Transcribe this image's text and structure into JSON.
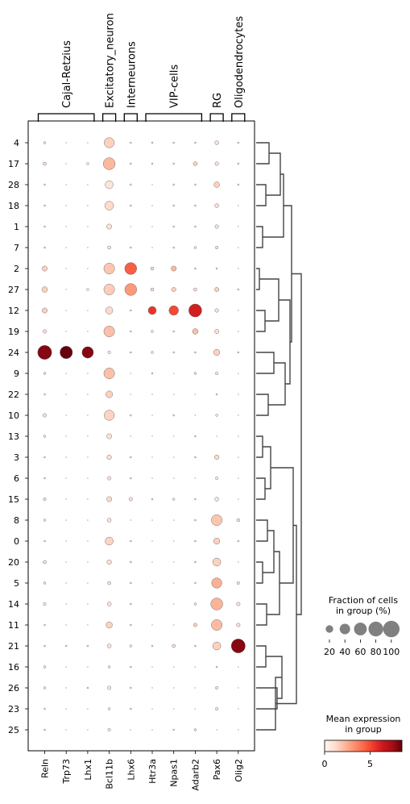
{
  "chart_data": {
    "type": "dotplot",
    "genes": [
      "Reln",
      "Trp73",
      "Lhx1",
      "Bcl11b",
      "Lhx6",
      "Htr3a",
      "Npas1",
      "Adarb2",
      "Pax6",
      "Olig2"
    ],
    "groups": [
      "4",
      "17",
      "28",
      "18",
      "1",
      "7",
      "2",
      "27",
      "12",
      "19",
      "24",
      "9",
      "22",
      "10",
      "13",
      "3",
      "6",
      "15",
      "8",
      "0",
      "20",
      "5",
      "14",
      "11",
      "21",
      "16",
      "26",
      "23",
      "25"
    ],
    "gene_groups": [
      {
        "label": "Cajal-Retzius",
        "start": 0,
        "end": 2
      },
      {
        "label": "Excitatory_neuron",
        "start": 3,
        "end": 3
      },
      {
        "label": "Interneurons",
        "start": 4,
        "end": 4
      },
      {
        "label": "VIP-cells",
        "start": 5,
        "end": 7
      },
      {
        "label": "RG",
        "start": 8,
        "end": 8
      },
      {
        "label": "Oligodendrocytes",
        "start": 9,
        "end": 9
      }
    ],
    "fraction": [
      [
        2,
        0,
        0,
        40,
        1,
        1,
        1,
        1,
        6,
        1
      ],
      [
        4,
        0,
        2,
        55,
        1,
        1,
        1,
        6,
        5,
        1
      ],
      [
        1,
        0,
        0,
        25,
        1,
        0,
        1,
        1,
        12,
        1
      ],
      [
        1,
        0,
        0,
        30,
        1,
        0,
        1,
        1,
        6,
        0
      ],
      [
        1,
        0,
        0,
        10,
        0,
        0,
        1,
        1,
        5,
        0
      ],
      [
        1,
        0,
        0,
        4,
        1,
        0,
        1,
        2,
        3,
        0
      ],
      [
        10,
        0,
        0,
        45,
        55,
        4,
        10,
        1,
        1,
        0
      ],
      [
        12,
        0,
        2,
        45,
        55,
        4,
        7,
        4,
        7,
        1
      ],
      [
        10,
        0,
        0,
        20,
        1,
        25,
        35,
        65,
        5,
        0
      ],
      [
        5,
        0,
        0,
        45,
        1,
        2,
        1,
        12,
        7,
        0
      ],
      [
        75,
        60,
        50,
        3,
        1,
        2,
        1,
        1,
        15,
        1
      ],
      [
        2,
        0,
        0,
        45,
        0,
        1,
        0,
        2,
        3,
        0
      ],
      [
        1,
        0,
        0,
        18,
        0,
        0,
        0,
        0,
        1,
        0
      ],
      [
        5,
        0,
        0,
        40,
        1,
        0,
        1,
        0,
        2,
        0
      ],
      [
        2,
        0,
        0,
        10,
        0,
        0,
        0,
        1,
        0,
        0
      ],
      [
        1,
        0,
        0,
        8,
        1,
        0,
        0,
        1,
        8,
        0
      ],
      [
        1,
        0,
        0,
        5,
        1,
        0,
        0,
        0,
        3,
        0
      ],
      [
        3,
        0,
        0,
        10,
        5,
        1,
        2,
        1,
        6,
        0
      ],
      [
        2,
        0,
        0,
        6,
        0,
        0,
        0,
        1,
        45,
        4
      ],
      [
        1,
        0,
        0,
        25,
        1,
        0,
        0,
        1,
        15,
        1
      ],
      [
        4,
        0,
        0,
        8,
        1,
        0,
        0,
        1,
        25,
        0
      ],
      [
        2,
        0,
        0,
        4,
        1,
        0,
        0,
        1,
        40,
        3
      ],
      [
        3,
        0,
        0,
        6,
        1,
        0,
        0,
        2,
        55,
        5
      ],
      [
        1,
        0,
        0,
        15,
        1,
        0,
        0,
        5,
        45,
        5
      ],
      [
        1,
        1,
        1,
        6,
        2,
        1,
        4,
        1,
        25,
        75
      ],
      [
        2,
        0,
        0,
        2,
        1,
        0,
        0,
        0,
        1,
        0
      ],
      [
        2,
        0,
        1,
        5,
        1,
        0,
        0,
        0,
        3,
        0
      ],
      [
        1,
        0,
        0,
        2,
        1,
        0,
        0,
        0,
        3,
        0
      ],
      [
        1,
        0,
        0,
        3,
        0,
        0,
        1,
        2,
        0,
        0
      ]
    ],
    "expression": [
      [
        0.5,
        0,
        0,
        1.5,
        0.5,
        0.5,
        0.5,
        0.5,
        1,
        0.5
      ],
      [
        1,
        0,
        0,
        2.2,
        0.5,
        0.5,
        0.5,
        1.5,
        1,
        0.5
      ],
      [
        0.5,
        0,
        0,
        0.8,
        0.5,
        0,
        0.5,
        0.5,
        1.5,
        0.5
      ],
      [
        0.5,
        0,
        0,
        1.2,
        0.5,
        0,
        0.5,
        0.5,
        1,
        0
      ],
      [
        0.5,
        0,
        0,
        1.0,
        0,
        0,
        0.5,
        0.5,
        1,
        0
      ],
      [
        0.5,
        0,
        0,
        0.8,
        0.5,
        0,
        0.5,
        0.5,
        1,
        0
      ],
      [
        1.5,
        0,
        0,
        1.8,
        4.5,
        1,
        2.2,
        0.5,
        0.5,
        0
      ],
      [
        1.5,
        0,
        0,
        1.6,
        3.0,
        1,
        1.5,
        1,
        1.5,
        0.5
      ],
      [
        1.5,
        0,
        0,
        1.2,
        0.5,
        5.5,
        5.0,
        6.2,
        1,
        0
      ],
      [
        1,
        0,
        0,
        2.0,
        0.5,
        0.5,
        0.5,
        2.0,
        1,
        0
      ],
      [
        8.0,
        9.0,
        8.0,
        0.5,
        0.5,
        0.5,
        0.5,
        0.5,
        1.5,
        0.5
      ],
      [
        0.5,
        0,
        0,
        2.0,
        0,
        0.5,
        0,
        0.5,
        0.5,
        0
      ],
      [
        0.5,
        0,
        0,
        1.5,
        0,
        0,
        0,
        0,
        0.5,
        0
      ],
      [
        1,
        0,
        0,
        1.4,
        0.5,
        0,
        0.5,
        0,
        0.5,
        0
      ],
      [
        0.5,
        0,
        0,
        1.0,
        0,
        0,
        0,
        0.5,
        0,
        0
      ],
      [
        0.5,
        0,
        0,
        1.0,
        0.5,
        0,
        0,
        0.5,
        1.2,
        0
      ],
      [
        0.5,
        0,
        0,
        0.8,
        0.5,
        0,
        0,
        0,
        0.5,
        0
      ],
      [
        1,
        0,
        0,
        1.2,
        1,
        0.5,
        0.5,
        0.5,
        0.8,
        0
      ],
      [
        0.5,
        0,
        0,
        0.8,
        0,
        0,
        0,
        0.5,
        1.8,
        1
      ],
      [
        0.5,
        0,
        0,
        1.4,
        0.5,
        0,
        0,
        0.5,
        1.5,
        0.5
      ],
      [
        1,
        0,
        0,
        1.0,
        0.5,
        0,
        0,
        0.5,
        1.5,
        0
      ],
      [
        0.5,
        0,
        0,
        0.8,
        0.5,
        0,
        0,
        0.5,
        2.4,
        1
      ],
      [
        0.5,
        0,
        0,
        0.8,
        0.5,
        0,
        0,
        0.5,
        2.3,
        1
      ],
      [
        0.5,
        0,
        0,
        1.4,
        0.5,
        0,
        0,
        1.5,
        2.1,
        1
      ],
      [
        0.5,
        0.5,
        0.5,
        0.8,
        0.5,
        0.5,
        1,
        0.5,
        1.5,
        8.0
      ],
      [
        0.5,
        0,
        0,
        0.5,
        0.5,
        0,
        0,
        0,
        0.5,
        0
      ],
      [
        0.5,
        0,
        0.5,
        0.8,
        0.5,
        0,
        0,
        0,
        0.8,
        0
      ],
      [
        0.5,
        0,
        0,
        0.5,
        0.5,
        0,
        0,
        0,
        0.8,
        0
      ],
      [
        0.5,
        0,
        0,
        0.5,
        0,
        0,
        0.5,
        0.8,
        0,
        0
      ]
    ],
    "dendrogram_links": [
      [
        0,
        1
      ],
      [
        2,
        3
      ],
      [
        4,
        5
      ],
      [
        6,
        7
      ],
      [
        8,
        9
      ],
      [
        10,
        11
      ],
      [
        12,
        13
      ],
      [
        14,
        15
      ],
      [
        16,
        17
      ],
      [
        18,
        19
      ],
      [
        20,
        21
      ],
      [
        22,
        23
      ],
      [
        24,
        25
      ],
      [
        26,
        27
      ]
    ],
    "size_legend": {
      "title": "Fraction of cells\nin group (%)",
      "ticks": [
        "20",
        "40",
        "60",
        "80",
        "100"
      ],
      "values": [
        20,
        40,
        60,
        80,
        100
      ]
    },
    "color_legend": {
      "title": "Mean expression\nin group",
      "ticks": [
        "0",
        "5"
      ],
      "values": [
        0,
        5
      ],
      "vmin": 0,
      "vmax": 8.5
    }
  }
}
